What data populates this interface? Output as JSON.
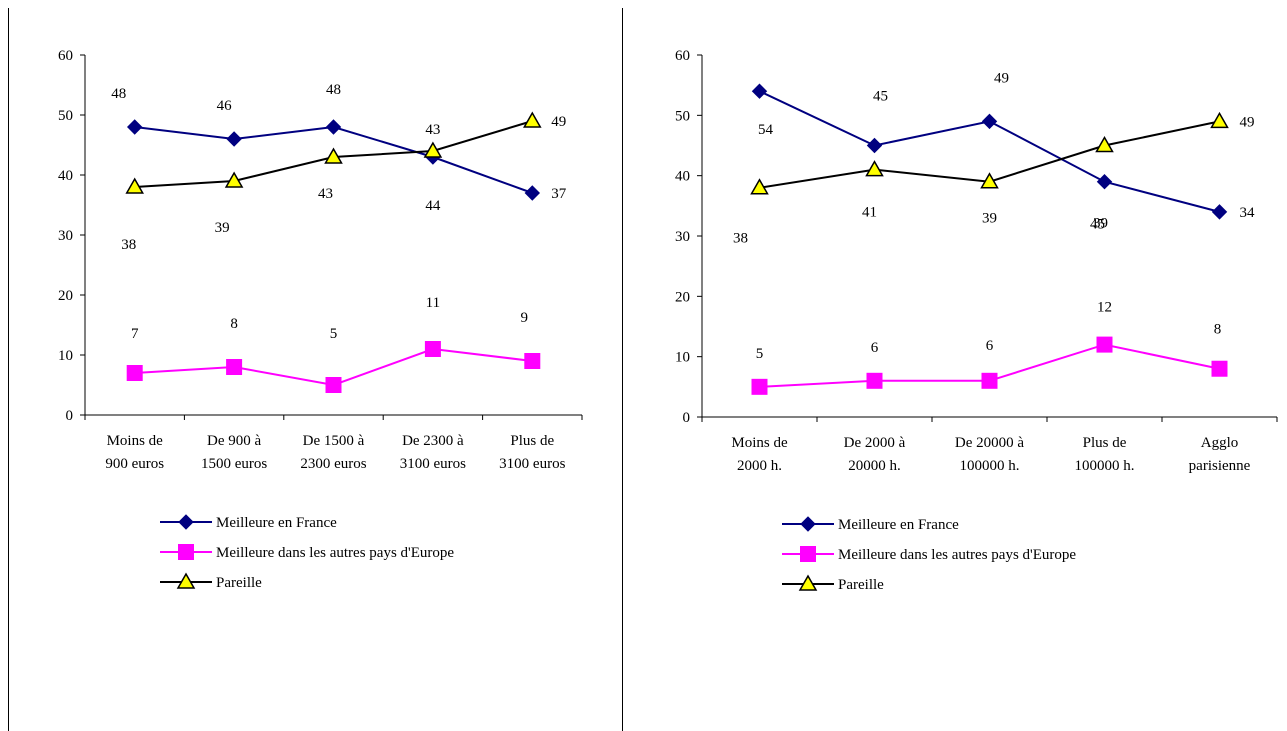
{
  "colors": {
    "france": "#000080",
    "europe": "#FF00FF",
    "pareille": "#000000",
    "triangle_fill": "#FFFF00"
  },
  "chart_data": [
    {
      "type": "line",
      "categories": [
        [
          "Moins de",
          "900 euros"
        ],
        [
          "De 900 à",
          "1500 euros"
        ],
        [
          "De 1500 à",
          "2300 euros"
        ],
        [
          "De 2300 à",
          "3100 euros"
        ],
        [
          "Plus de",
          "3100 euros"
        ]
      ],
      "ylim": [
        0,
        60
      ],
      "yticks": [
        "0",
        "10",
        "20",
        "30",
        "40",
        "50",
        "60"
      ],
      "grid": false,
      "legend_placement": "bottom",
      "series": [
        {
          "name": "Meilleure en France",
          "marker": "diamond",
          "values": [
            48,
            46,
            48,
            43,
            37
          ],
          "labels": [
            "48",
            "46",
            "48",
            "43",
            "37"
          ]
        },
        {
          "name": "Meilleure dans les autres pays d'Europe",
          "marker": "square",
          "values": [
            7,
            8,
            5,
            11,
            9
          ],
          "labels": [
            "7",
            "8",
            "5",
            "11",
            "9"
          ]
        },
        {
          "name": "Pareille",
          "marker": "triangle",
          "values": [
            38,
            39,
            43,
            44,
            49
          ],
          "labels": [
            "38",
            "39",
            "43",
            "44",
            "49"
          ]
        }
      ]
    },
    {
      "type": "line",
      "categories": [
        [
          "Moins de",
          "2000 h."
        ],
        [
          "De 2000 à",
          "20000 h."
        ],
        [
          "De 20000 à",
          "100000 h."
        ],
        [
          "Plus de",
          "100000 h."
        ],
        [
          "Agglo",
          "parisienne"
        ]
      ],
      "ylim": [
        0,
        60
      ],
      "yticks": [
        "0",
        "10",
        "20",
        "30",
        "40",
        "50",
        "60"
      ],
      "grid": false,
      "legend_placement": "bottom",
      "series": [
        {
          "name": "Meilleure en France",
          "marker": "diamond",
          "values": [
            54,
            45,
            49,
            39,
            34
          ],
          "labels": [
            "54",
            "45",
            "49",
            "39",
            "34"
          ]
        },
        {
          "name": "Meilleure dans les autres pays d'Europe",
          "marker": "square",
          "values": [
            5,
            6,
            6,
            12,
            8
          ],
          "labels": [
            "5",
            "6",
            "6",
            "12",
            "8"
          ]
        },
        {
          "name": "Pareille",
          "marker": "triangle",
          "values": [
            38,
            41,
            39,
            45,
            49
          ],
          "labels": [
            "38",
            "41",
            "39",
            "45",
            "49"
          ]
        }
      ]
    }
  ]
}
